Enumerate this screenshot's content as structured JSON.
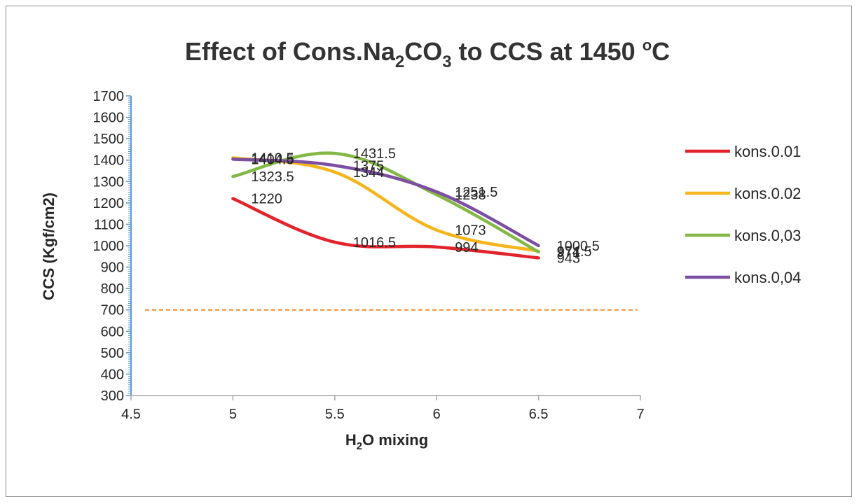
{
  "chart_data": {
    "type": "line",
    "title": "Effect of Cons.Na2CO3 to CCS at 1450 °C",
    "title_parts": {
      "prefix": "Effect of Cons.Na",
      "sub1": "2",
      "mid": "CO",
      "sub2": "3",
      "suffix": " to CCS at 1450 ",
      "deg": "o",
      "unit": "C"
    },
    "xlabel": "H2O mixing",
    "xlabel_parts": {
      "prefix": "H",
      "sub": "2",
      "suffix": "O mixing"
    },
    "ylabel": "CCS (Kgf/cm2)",
    "xlim": [
      4.5,
      7
    ],
    "ylim": [
      300,
      1700
    ],
    "xticks": [
      4.5,
      5,
      5.5,
      6,
      6.5,
      7
    ],
    "xtick_labels": [
      "4.5",
      "5",
      "5.5",
      "6",
      "6.5",
      "7"
    ],
    "yticks": [
      300,
      400,
      500,
      600,
      700,
      800,
      900,
      1000,
      1100,
      1200,
      1300,
      1400,
      1500,
      1600,
      1700
    ],
    "ytick_labels": [
      "300",
      "400",
      "500",
      "600",
      "700",
      "800",
      "900",
      "1000",
      "1100",
      "1200",
      "1300",
      "1400",
      "1500",
      "1600",
      "1700"
    ],
    "x": [
      5,
      5.5,
      6,
      6.5
    ],
    "series": [
      {
        "name": "kons.0.01",
        "color": "#e3232c",
        "values": [
          1220,
          1016.5,
          994,
          943
        ],
        "labels": [
          "1220",
          "1016.5",
          "994",
          "943"
        ]
      },
      {
        "name": "kons.0.02",
        "color": "#f5b51c",
        "values": [
          1410.5,
          1344,
          1073,
          974.5
        ],
        "labels": [
          "1410.5",
          "1344",
          "1073",
          "974.5"
        ]
      },
      {
        "name": "kons.0,03",
        "color": "#84b846",
        "values": [
          1323.5,
          1431.5,
          1238,
          971
        ],
        "labels": [
          "1323.5",
          "1431.5",
          "1238",
          "971"
        ]
      },
      {
        "name": "kons.0,04",
        "color": "#7c4fa1",
        "values": [
          1404.5,
          1375,
          1251.5,
          1000.5
        ],
        "labels": [
          "1404.5",
          "1375",
          "1251.5",
          "1000.5"
        ]
      }
    ],
    "reference_line": {
      "y": 700,
      "color": "#f08c2c",
      "style": "dashed"
    },
    "legend_position": "right"
  }
}
